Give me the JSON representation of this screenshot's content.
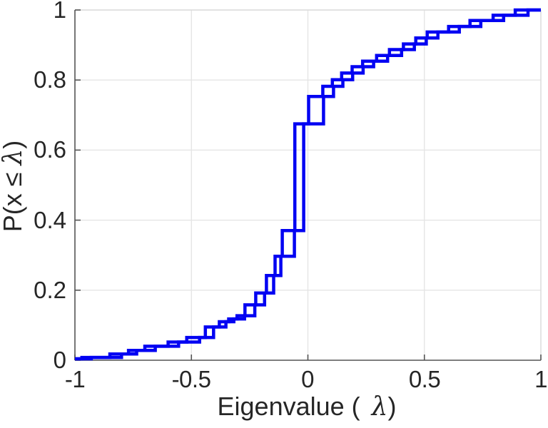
{
  "chart_data": {
    "type": "line",
    "subtype": "ecdf-stairs",
    "title": "",
    "xlabel": {
      "prefix": "Eigenvalue (",
      "symbol": "λ",
      "suffix": ")"
    },
    "ylabel": {
      "prefix": "P(x ≤ ",
      "symbol": "λ",
      "suffix": ")"
    },
    "xlim": [
      -1,
      1
    ],
    "ylim": [
      0,
      1
    ],
    "grid": true,
    "legend_position": "none",
    "x_ticks": [
      -1,
      -0.5,
      0,
      0.5,
      1
    ],
    "x_tick_labels": [
      "-1",
      "-0.5",
      "0",
      "0.5",
      "1"
    ],
    "y_ticks": [
      0,
      0.2,
      0.4,
      0.6,
      0.8,
      1
    ],
    "y_tick_labels": [
      "0",
      "0.2",
      "0.4",
      "0.6",
      "0.8",
      "1"
    ],
    "line_color": "#0202f2",
    "axis_color": "#545454",
    "box_light_color": "#d9d9d9",
    "grid_color": "#e4e4e4",
    "text_color": "#262626",
    "series": [
      {
        "name": "ecdf-curve-1",
        "x": [
          -0.97,
          -0.85,
          -0.77,
          -0.7,
          -0.6,
          -0.52,
          -0.44,
          -0.38,
          -0.34,
          -0.304,
          -0.27,
          -0.224,
          -0.178,
          -0.141,
          -0.11,
          -0.056,
          0.003,
          0.064,
          0.105,
          0.145,
          0.19,
          0.235,
          0.295,
          0.35,
          0.41,
          0.463,
          0.512,
          0.604,
          0.696,
          0.795,
          0.89
        ],
        "p": [
          0.008,
          0.018,
          0.028,
          0.04,
          0.052,
          0.065,
          0.095,
          0.11,
          0.118,
          0.127,
          0.158,
          0.192,
          0.242,
          0.297,
          0.37,
          0.675,
          0.753,
          0.782,
          0.801,
          0.82,
          0.838,
          0.854,
          0.87,
          0.887,
          0.903,
          0.92,
          0.937,
          0.953,
          0.97,
          0.985,
          1.0
        ]
      },
      {
        "name": "ecdf-curve-2",
        "x": [
          -0.93,
          -0.8,
          -0.735,
          -0.655,
          -0.555,
          -0.465,
          -0.405,
          -0.352,
          -0.318,
          -0.272,
          -0.228,
          -0.186,
          -0.147,
          -0.116,
          -0.058,
          -0.018,
          0.067,
          0.11,
          0.15,
          0.192,
          0.237,
          0.282,
          0.342,
          0.402,
          0.457,
          0.508,
          0.558,
          0.65,
          0.742,
          0.84,
          0.945
        ],
        "p": [
          0.008,
          0.018,
          0.028,
          0.04,
          0.052,
          0.065,
          0.095,
          0.11,
          0.118,
          0.127,
          0.158,
          0.192,
          0.242,
          0.297,
          0.37,
          0.675,
          0.753,
          0.782,
          0.801,
          0.82,
          0.838,
          0.854,
          0.87,
          0.887,
          0.903,
          0.92,
          0.937,
          0.953,
          0.97,
          0.985,
          1.0
        ]
      }
    ]
  }
}
